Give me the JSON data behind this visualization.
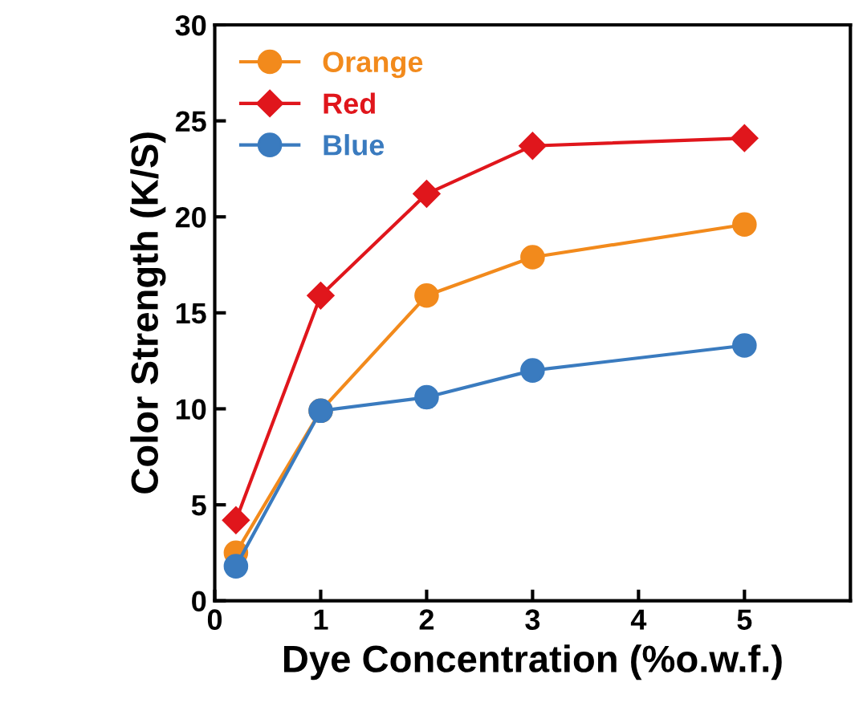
{
  "chart_data": {
    "type": "line",
    "xlabel": "Dye Concentration (%o.w.f.)",
    "ylabel": "Color Strength (K/S)",
    "x": [
      0.2,
      1,
      2,
      3,
      5
    ],
    "series": [
      {
        "name": "Orange",
        "color": "#f28a1c",
        "marker": "circle",
        "values": [
          2.5,
          9.9,
          15.9,
          17.9,
          19.6
        ]
      },
      {
        "name": "Red",
        "color": "#e0161c",
        "marker": "diamond",
        "values": [
          4.2,
          15.9,
          21.2,
          23.7,
          24.1
        ]
      },
      {
        "name": "Blue",
        "color": "#3a7bbf",
        "marker": "circle",
        "values": [
          1.8,
          9.9,
          10.6,
          12.0,
          13.3
        ]
      }
    ],
    "xlim": [
      0,
      6
    ],
    "xticks": [
      0,
      1,
      2,
      3,
      4,
      5
    ],
    "ylim": [
      0,
      30
    ],
    "yticks": [
      0,
      5,
      10,
      15,
      20,
      25,
      30
    ],
    "grid": false,
    "legend": "top left",
    "line_style": "solid"
  }
}
